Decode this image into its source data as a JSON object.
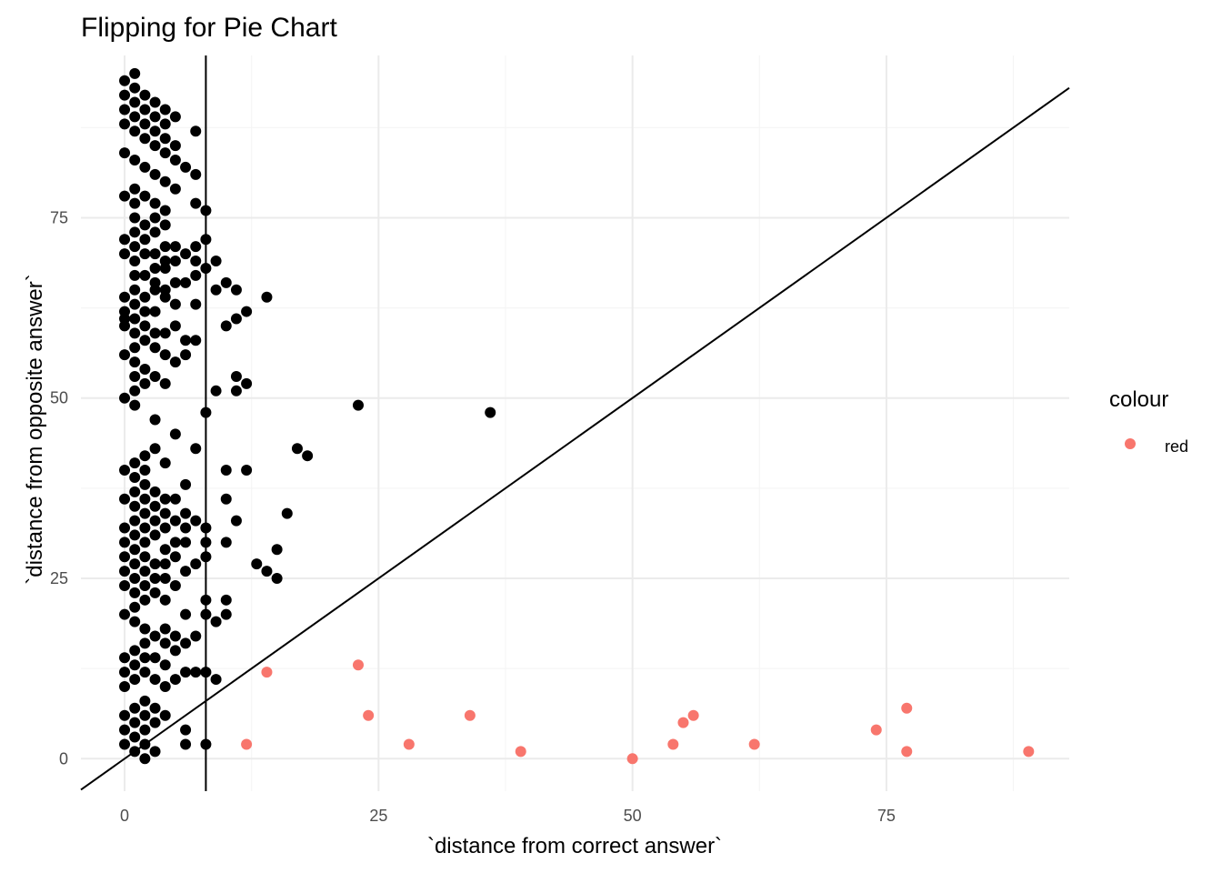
{
  "chart_data": {
    "type": "scatter",
    "title": "Flipping for Pie Chart",
    "xlabel": "`distance from correct answer`",
    "ylabel": "`distance from opposite answer`",
    "xlim": [
      -4.3,
      93
    ],
    "ylim": [
      -4.5,
      97.5
    ],
    "x_ticks": [
      0,
      25,
      50,
      75
    ],
    "y_ticks": [
      0,
      25,
      50,
      75
    ],
    "x_tick_labels": [
      "0",
      "25",
      "50",
      "75"
    ],
    "y_tick_labels": [
      "0",
      "25",
      "50",
      "75"
    ],
    "grid": true,
    "legend": {
      "title": "colour",
      "placement": "right",
      "entries": [
        {
          "label": "red",
          "color": "#F8766D"
        }
      ]
    },
    "reference_lines": [
      {
        "kind": "vertical",
        "x": 8
      },
      {
        "kind": "diagonal",
        "slope": 1,
        "intercept": 0
      }
    ],
    "colors": {
      "black_points": "#000000",
      "red_points": "#F8766D",
      "grid_major": "#ebebeb",
      "grid_minor": "#f5f5f5"
    },
    "series": [
      {
        "color": "#000000",
        "points": [
          [
            0,
            94
          ],
          [
            1,
            95
          ],
          [
            0,
            92
          ],
          [
            1,
            93
          ],
          [
            2,
            92
          ],
          [
            3,
            91
          ],
          [
            0,
            90
          ],
          [
            1,
            91
          ],
          [
            2,
            90
          ],
          [
            4,
            90
          ],
          [
            1,
            89
          ],
          [
            3,
            89
          ],
          [
            4,
            88
          ],
          [
            5,
            89
          ],
          [
            0,
            88
          ],
          [
            2,
            88
          ],
          [
            3,
            87
          ],
          [
            1,
            87
          ],
          [
            7,
            87
          ],
          [
            2,
            86
          ],
          [
            4,
            86
          ],
          [
            5,
            85
          ],
          [
            3,
            85
          ],
          [
            4,
            84
          ],
          [
            0,
            84
          ],
          [
            1,
            83
          ],
          [
            5,
            83
          ],
          [
            6,
            82
          ],
          [
            2,
            82
          ],
          [
            3,
            81
          ],
          [
            7,
            81
          ],
          [
            4,
            80
          ],
          [
            5,
            79
          ],
          [
            1,
            79
          ],
          [
            0,
            78
          ],
          [
            2,
            78
          ],
          [
            3,
            77
          ],
          [
            1,
            77
          ],
          [
            4,
            76
          ],
          [
            7,
            77
          ],
          [
            8,
            76
          ],
          [
            1,
            75
          ],
          [
            3,
            75
          ],
          [
            2,
            74
          ],
          [
            4,
            74
          ],
          [
            1,
            73
          ],
          [
            3,
            73
          ],
          [
            0,
            72
          ],
          [
            2,
            72
          ],
          [
            1,
            71
          ],
          [
            4,
            71
          ],
          [
            5,
            71
          ],
          [
            7,
            71
          ],
          [
            8,
            72
          ],
          [
            0,
            70
          ],
          [
            2,
            70
          ],
          [
            3,
            70
          ],
          [
            6,
            70
          ],
          [
            1,
            69
          ],
          [
            4,
            69
          ],
          [
            5,
            69
          ],
          [
            3,
            68
          ],
          [
            7,
            69
          ],
          [
            8,
            68
          ],
          [
            9,
            69
          ],
          [
            2,
            67
          ],
          [
            4,
            68
          ],
          [
            1,
            67
          ],
          [
            3,
            66
          ],
          [
            5,
            66
          ],
          [
            6,
            66
          ],
          [
            7,
            67
          ],
          [
            10,
            66
          ],
          [
            11,
            65
          ],
          [
            9,
            65
          ],
          [
            0,
            64
          ],
          [
            2,
            64
          ],
          [
            1,
            65
          ],
          [
            4,
            65
          ],
          [
            3,
            65
          ],
          [
            4,
            64
          ],
          [
            14,
            64
          ],
          [
            0,
            62
          ],
          [
            1,
            63
          ],
          [
            2,
            62
          ],
          [
            3,
            62
          ],
          [
            5,
            63
          ],
          [
            7,
            63
          ],
          [
            12,
            62
          ],
          [
            11,
            61
          ],
          [
            0,
            61
          ],
          [
            1,
            61
          ],
          [
            2,
            60
          ],
          [
            10,
            60
          ],
          [
            0,
            60
          ],
          [
            1,
            59
          ],
          [
            3,
            59
          ],
          [
            4,
            59
          ],
          [
            5,
            60
          ],
          [
            6,
            58
          ],
          [
            7,
            58
          ],
          [
            2,
            58
          ],
          [
            3,
            57
          ],
          [
            1,
            57
          ],
          [
            4,
            56
          ],
          [
            5,
            55
          ],
          [
            6,
            56
          ],
          [
            0,
            56
          ],
          [
            1,
            55
          ],
          [
            2,
            54
          ],
          [
            3,
            53
          ],
          [
            1,
            53
          ],
          [
            4,
            52
          ],
          [
            2,
            52
          ],
          [
            11,
            53
          ],
          [
            12,
            52
          ],
          [
            9,
            51
          ],
          [
            11,
            51
          ],
          [
            0,
            50
          ],
          [
            1,
            51
          ],
          [
            1,
            49
          ],
          [
            8,
            48
          ],
          [
            23,
            49
          ],
          [
            36,
            48
          ],
          [
            3,
            47
          ],
          [
            5,
            45
          ],
          [
            7,
            43
          ],
          [
            17,
            43
          ],
          [
            18,
            42
          ],
          [
            3,
            43
          ],
          [
            2,
            42
          ],
          [
            1,
            41
          ],
          [
            4,
            41
          ],
          [
            0,
            40
          ],
          [
            2,
            40
          ],
          [
            10,
            40
          ],
          [
            12,
            40
          ],
          [
            1,
            39
          ],
          [
            2,
            38
          ],
          [
            6,
            38
          ],
          [
            3,
            37
          ],
          [
            1,
            37
          ],
          [
            4,
            36
          ],
          [
            0,
            36
          ],
          [
            2,
            36
          ],
          [
            5,
            36
          ],
          [
            10,
            36
          ],
          [
            16,
            34
          ],
          [
            1,
            35
          ],
          [
            3,
            35
          ],
          [
            4,
            34
          ],
          [
            6,
            34
          ],
          [
            2,
            34
          ],
          [
            5,
            33
          ],
          [
            7,
            33
          ],
          [
            11,
            33
          ],
          [
            1,
            33
          ],
          [
            3,
            33
          ],
          [
            0,
            32
          ],
          [
            2,
            32
          ],
          [
            4,
            32
          ],
          [
            6,
            32
          ],
          [
            8,
            32
          ],
          [
            1,
            31
          ],
          [
            3,
            31
          ],
          [
            5,
            30
          ],
          [
            0,
            30
          ],
          [
            2,
            30
          ],
          [
            6,
            30
          ],
          [
            8,
            30
          ],
          [
            10,
            30
          ],
          [
            4,
            29
          ],
          [
            15,
            29
          ],
          [
            1,
            29
          ],
          [
            0,
            28
          ],
          [
            2,
            28
          ],
          [
            3,
            27
          ],
          [
            5,
            28
          ],
          [
            8,
            28
          ],
          [
            1,
            27
          ],
          [
            13,
            27
          ],
          [
            4,
            27
          ],
          [
            7,
            27
          ],
          [
            0,
            26
          ],
          [
            2,
            26
          ],
          [
            3,
            25
          ],
          [
            6,
            26
          ],
          [
            14,
            26
          ],
          [
            15,
            25
          ],
          [
            1,
            25
          ],
          [
            4,
            25
          ],
          [
            0,
            24
          ],
          [
            2,
            24
          ],
          [
            5,
            24
          ],
          [
            1,
            23
          ],
          [
            3,
            23
          ],
          [
            2,
            22
          ],
          [
            4,
            22
          ],
          [
            8,
            22
          ],
          [
            10,
            22
          ],
          [
            1,
            21
          ],
          [
            0,
            20
          ],
          [
            6,
            20
          ],
          [
            8,
            20
          ],
          [
            9,
            19
          ],
          [
            10,
            20
          ],
          [
            1,
            19
          ],
          [
            4,
            18
          ],
          [
            2,
            18
          ],
          [
            3,
            17
          ],
          [
            5,
            17
          ],
          [
            7,
            17
          ],
          [
            4,
            16
          ],
          [
            6,
            16
          ],
          [
            2,
            16
          ],
          [
            1,
            15
          ],
          [
            5,
            15
          ],
          [
            3,
            14
          ],
          [
            0,
            14
          ],
          [
            2,
            14
          ],
          [
            4,
            13
          ],
          [
            1,
            13
          ],
          [
            0,
            12
          ],
          [
            2,
            12
          ],
          [
            6,
            12
          ],
          [
            8,
            12
          ],
          [
            9,
            11
          ],
          [
            7,
            12
          ],
          [
            1,
            11
          ],
          [
            3,
            11
          ],
          [
            5,
            11
          ],
          [
            4,
            10
          ],
          [
            0,
            10
          ],
          [
            2,
            8
          ],
          [
            1,
            7
          ],
          [
            3,
            7
          ],
          [
            4,
            6
          ],
          [
            0,
            6
          ],
          [
            2,
            6
          ],
          [
            1,
            5
          ],
          [
            3,
            5
          ],
          [
            0,
            4
          ],
          [
            2,
            4
          ],
          [
            6,
            4
          ],
          [
            1,
            3
          ],
          [
            0,
            2
          ],
          [
            2,
            2
          ],
          [
            6,
            2
          ],
          [
            8,
            2
          ],
          [
            1,
            1
          ],
          [
            3,
            1
          ],
          [
            2,
            0
          ]
        ]
      },
      {
        "name": "red",
        "color": "#F8766D",
        "points": [
          [
            14,
            12
          ],
          [
            23,
            13
          ],
          [
            12,
            2
          ],
          [
            24,
            6
          ],
          [
            28,
            2
          ],
          [
            34,
            6
          ],
          [
            39,
            1
          ],
          [
            50,
            0
          ],
          [
            54,
            2
          ],
          [
            55,
            5
          ],
          [
            56,
            6
          ],
          [
            62,
            2
          ],
          [
            74,
            4
          ],
          [
            77,
            7
          ],
          [
            77,
            1
          ],
          [
            89,
            1
          ]
        ]
      }
    ]
  }
}
